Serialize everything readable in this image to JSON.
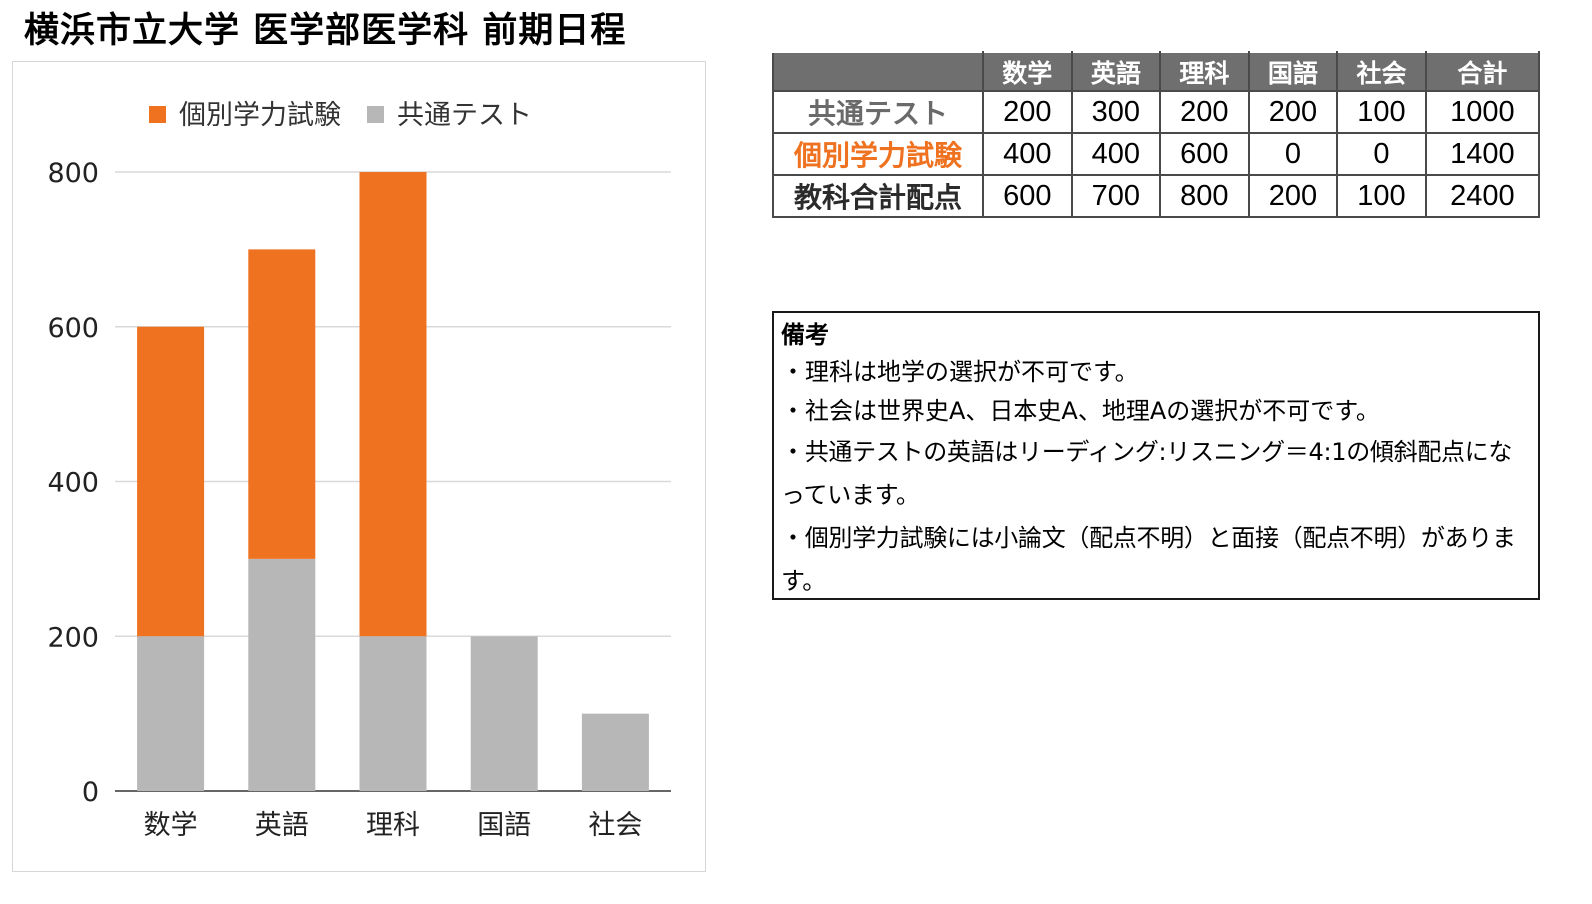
{
  "title": "横浜市立大学 医学部医学科 前期日程",
  "colors": {
    "individual_exam": "#ef7220",
    "common_test": "#b7b7b7",
    "grid": "#d9d9d9",
    "axis": "#666666",
    "header_bg": "#6f6f6f",
    "common_label": "#6a6a6a",
    "individual_label": "#ef7220",
    "total_label": "#2b2b2b"
  },
  "chart_data": {
    "type": "bar",
    "stacked": true,
    "categories": [
      "数学",
      "英語",
      "理科",
      "国語",
      "社会"
    ],
    "series": [
      {
        "name": "共通テスト",
        "color": "#b7b7b7",
        "values": [
          200,
          300,
          200,
          200,
          100
        ]
      },
      {
        "name": "個別学力試験",
        "color": "#ef7220",
        "values": [
          400,
          400,
          600,
          0,
          0
        ]
      }
    ],
    "legend_order": [
      "個別学力試験",
      "共通テスト"
    ],
    "legend_position": "top",
    "yticks": [
      0,
      200,
      400,
      600,
      800
    ],
    "ylim": [
      0,
      800
    ],
    "grid": true,
    "xlabel": "",
    "ylabel": ""
  },
  "table": {
    "headers": [
      "",
      "数学",
      "英語",
      "理科",
      "国語",
      "社会",
      "合計"
    ],
    "rows": [
      {
        "label": "共通テスト",
        "values": [
          "200",
          "300",
          "200",
          "200",
          "100",
          "1000"
        ]
      },
      {
        "label": "個別学力試験",
        "values": [
          "400",
          "400",
          "600",
          "0",
          "0",
          "1400"
        ]
      },
      {
        "label": "教科合計配点",
        "values": [
          "600",
          "700",
          "800",
          "200",
          "100",
          "2400"
        ]
      }
    ]
  },
  "notes": {
    "title": "備考",
    "lines": [
      "・理科は地学の選択が不可です。",
      "・社会は世界史A、日本史A、地理Aの選択が不可です。",
      "・共通テストの英語はリーディング:リスニング＝4:1の傾斜配点になっています。",
      "・個別学力試験には小論文（配点不明）と面接（配点不明）があります。"
    ]
  }
}
